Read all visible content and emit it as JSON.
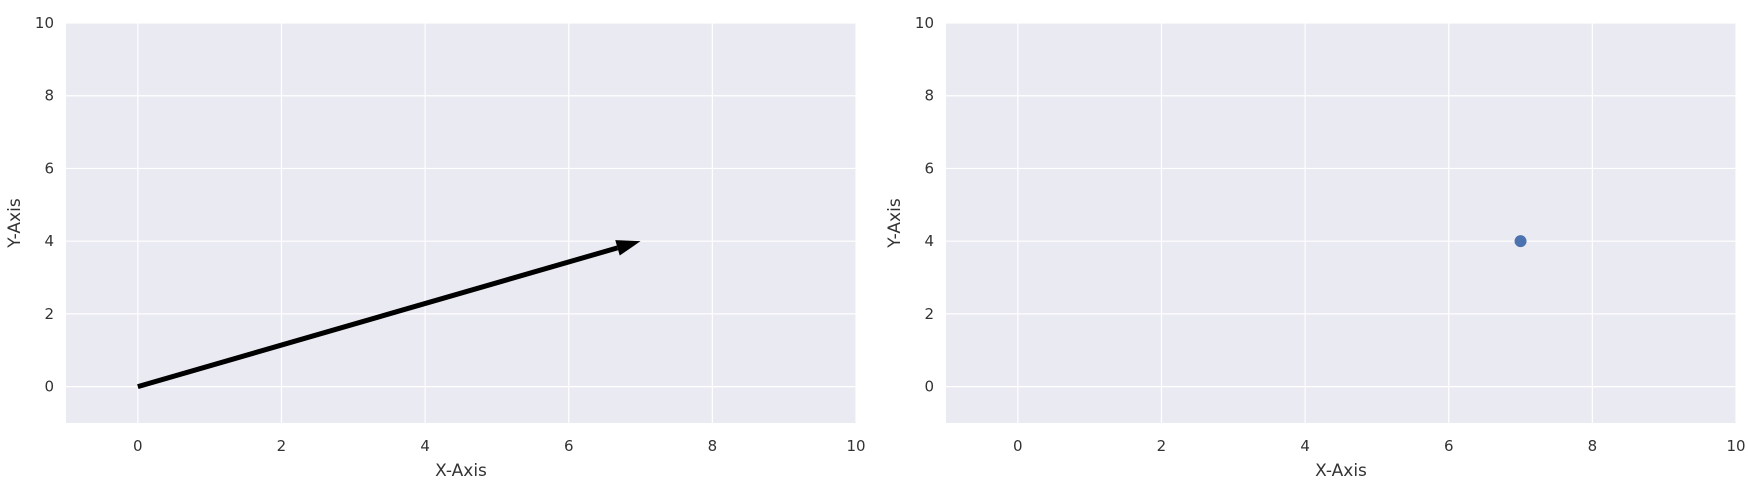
{
  "colors": {
    "plot_background": "#eaeaf2",
    "grid": "#ffffff",
    "arrow": "#000000",
    "point": "#4c72b0"
  },
  "chart_data": [
    {
      "type": "quiver",
      "title": "",
      "xlabel": "X-Axis",
      "ylabel": "Y-Axis",
      "xlim": [
        -1,
        10
      ],
      "ylim": [
        -1,
        10
      ],
      "xticks": [
        0,
        2,
        4,
        6,
        8,
        10
      ],
      "yticks": [
        0,
        2,
        4,
        6,
        8,
        10
      ],
      "grid": true,
      "vectors": [
        {
          "x0": 0,
          "y0": 0,
          "x1": 7,
          "y1": 4
        }
      ]
    },
    {
      "type": "scatter",
      "title": "",
      "xlabel": "X-Axis",
      "ylabel": "Y-Axis",
      "xlim": [
        -1,
        10
      ],
      "ylim": [
        -1,
        10
      ],
      "xticks": [
        0,
        2,
        4,
        6,
        8,
        10
      ],
      "yticks": [
        0,
        2,
        4,
        6,
        8,
        10
      ],
      "grid": true,
      "points": [
        {
          "x": 7,
          "y": 4
        }
      ]
    }
  ]
}
